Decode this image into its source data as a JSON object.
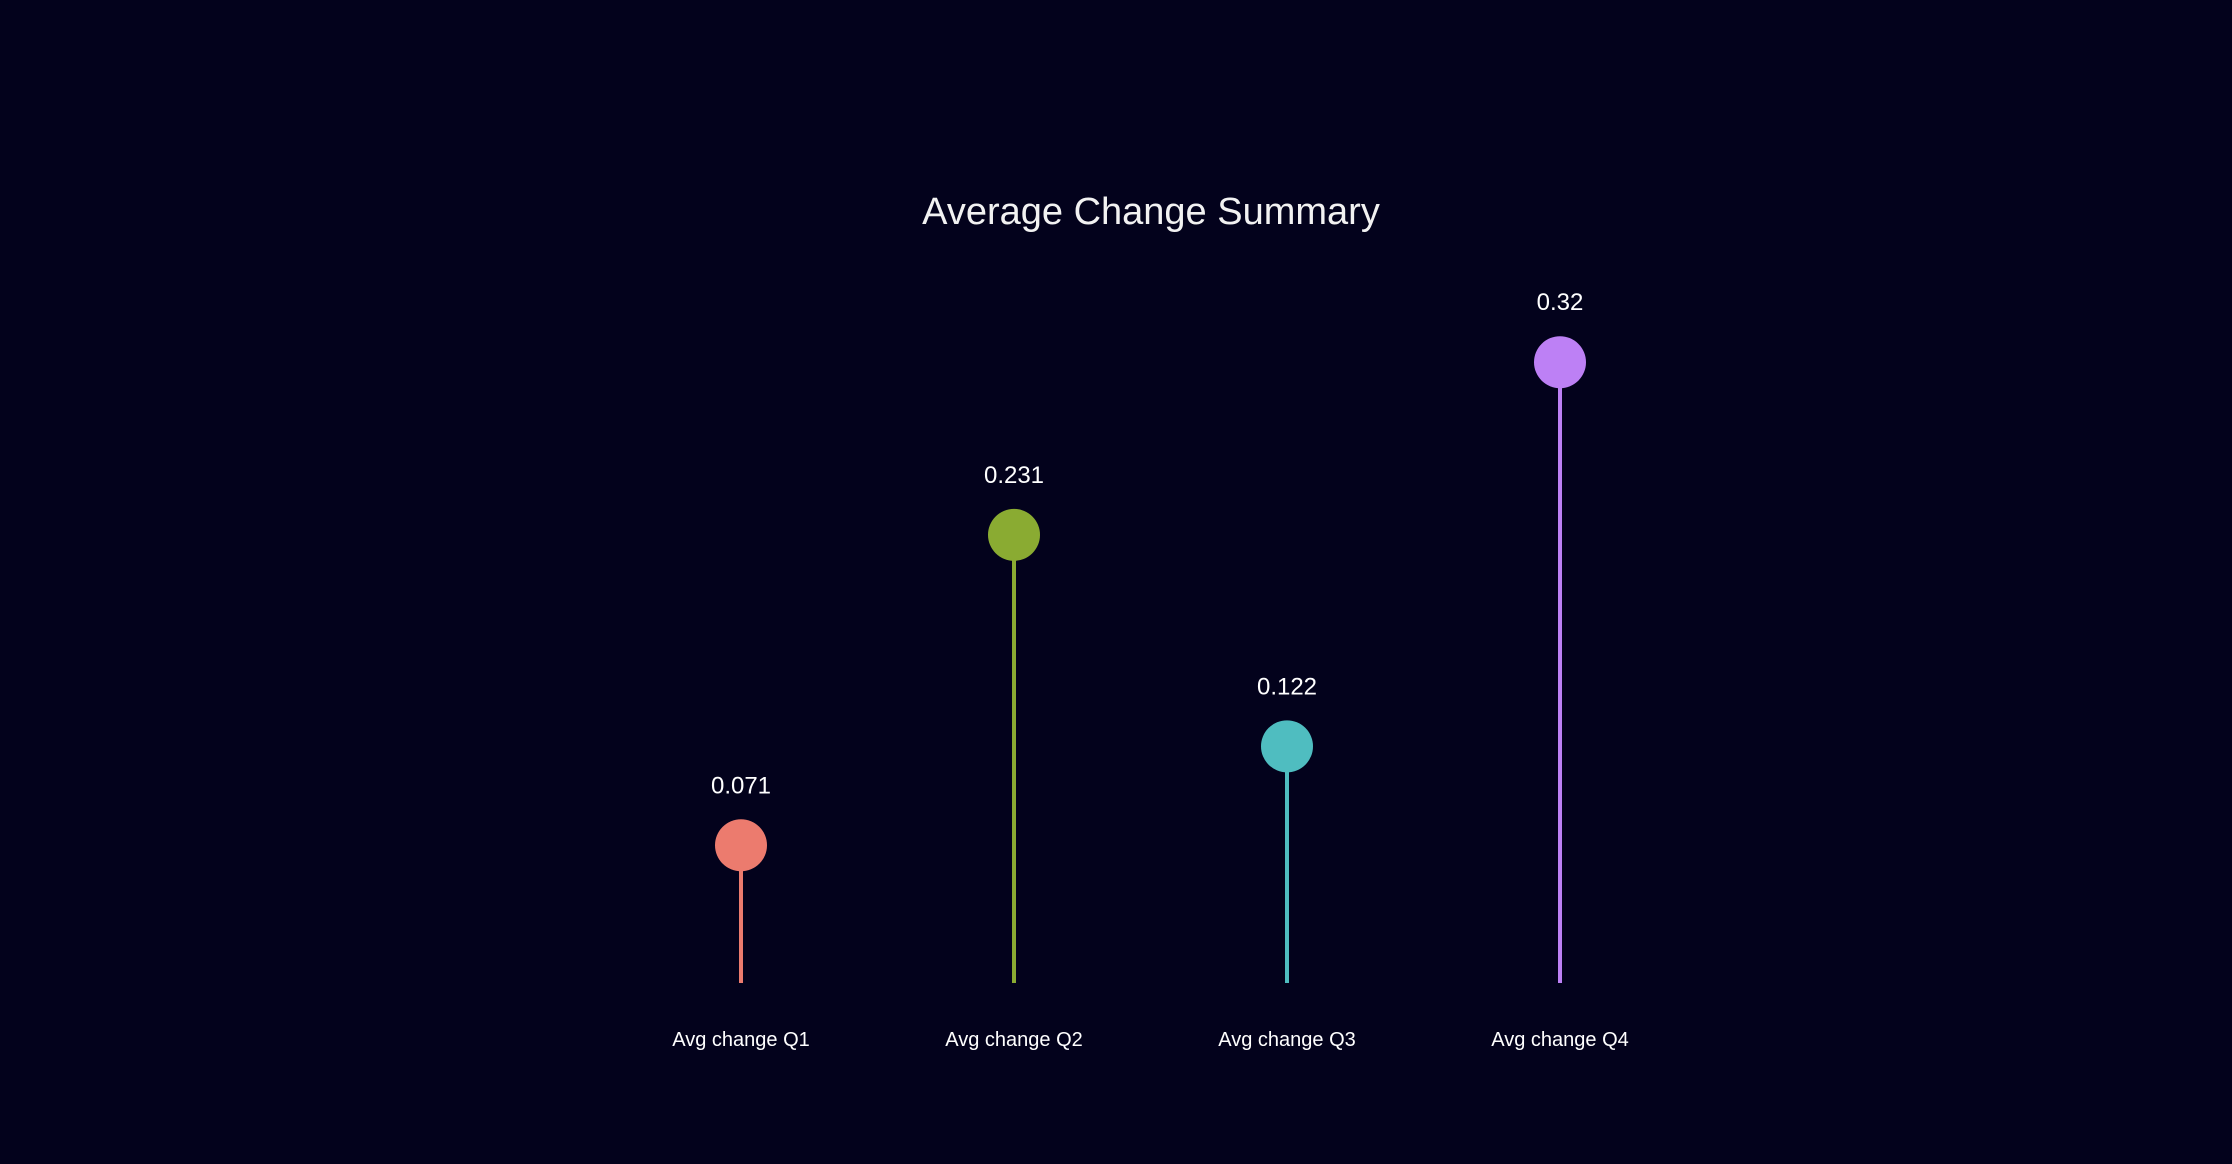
{
  "chart_data": {
    "type": "lollipop",
    "title": "Average Change Summary",
    "xlabel": "",
    "ylabel": "",
    "categories": [
      "Avg change Q1",
      "Avg change Q2",
      "Avg change Q3",
      "Avg change Q4"
    ],
    "values": [
      0.071,
      0.231,
      0.122,
      0.32
    ],
    "value_labels": [
      "0.071",
      "0.231",
      "0.122",
      "0.32"
    ],
    "colors": [
      "#ec7b6e",
      "#8aab32",
      "#4fbdc0",
      "#bd80f5"
    ],
    "ylim": [
      0,
      0.45
    ],
    "grid": false,
    "legend": "none",
    "background": "#03021c"
  }
}
